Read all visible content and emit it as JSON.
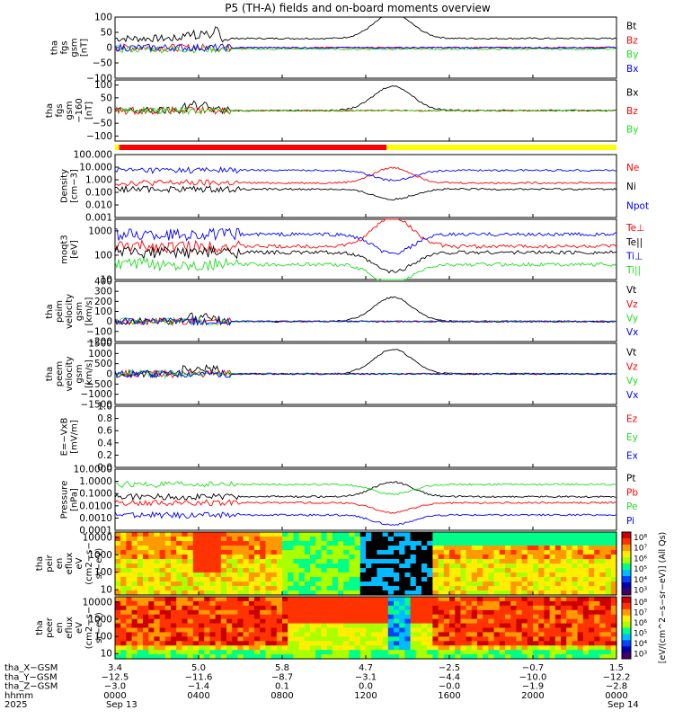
{
  "title": "P5 (TH-A) fields and on-board moments overview",
  "colors": {
    "black": "#000000",
    "red": "#ff0000",
    "green": "#22dd22",
    "blue": "#0000ff",
    "yellow": "#ffff00",
    "grid_bg": "#ffffff"
  },
  "chart_data": [
    {
      "type": "line",
      "id": "fgs",
      "ylabel": [
        "tha",
        "fgs",
        "gsm",
        "[nT]"
      ],
      "ylim": [
        -100,
        100
      ],
      "ticks": [
        "100",
        "50",
        "0",
        "−50",
        "−100"
      ],
      "tick_values": [
        100,
        50,
        0,
        -50,
        -100
      ],
      "legend": [
        {
          "label": "Bt",
          "color": "#000000"
        },
        {
          "label": "Bz",
          "color": "#ff0000"
        },
        {
          "label": "By",
          "color": "#22dd22"
        },
        {
          "label": "Bx",
          "color": "#0000ff"
        }
      ]
    },
    {
      "type": "line",
      "id": "fgs-sm",
      "ylabel": [
        "tha",
        "fgs",
        "gsm",
        "−160",
        "[nT]"
      ],
      "ylim": [
        -120,
        120
      ],
      "ticks": [
        "100",
        "50",
        "0",
        "−50",
        "−100"
      ],
      "tick_values": [
        100,
        50,
        0,
        -50,
        -100
      ],
      "legend": [
        {
          "label": "Bx",
          "color": "#000000"
        },
        {
          "label": "Bz",
          "color": "#ff0000"
        },
        {
          "label": "By",
          "color": "#22dd22"
        }
      ]
    },
    {
      "type": "bar",
      "id": "region-bar",
      "segments": [
        {
          "start_hour": 0.0,
          "end_hour": 0.2,
          "color": "#ffff00"
        },
        {
          "start_hour": 0.2,
          "end_hour": 13.0,
          "color": "#ff0000"
        },
        {
          "start_hour": 13.0,
          "end_hour": 24.0,
          "color": "#ffff00"
        }
      ]
    },
    {
      "type": "line",
      "id": "density",
      "ylabel": [
        "Density",
        "[cm−3]"
      ],
      "ylim": [
        0.001,
        100
      ],
      "scale": "log",
      "ticks": [
        "100.000",
        "10.000",
        "1.000",
        "0.100",
        "0.010",
        "0.001"
      ],
      "tick_values": [
        100,
        10,
        1,
        0.1,
        0.01,
        0.001
      ],
      "legend": [
        {
          "label": "Ne",
          "color": "#ff0000"
        },
        {
          "label": "Ni",
          "color": "#000000"
        },
        {
          "label": "Npot",
          "color": "#0000ff"
        }
      ]
    },
    {
      "type": "line",
      "id": "temp",
      "ylabel": [
        "moqt3",
        "[eV]"
      ],
      "ylim": [
        10,
        3000
      ],
      "scale": "log",
      "ticks": [
        "1000",
        "100",
        "10"
      ],
      "tick_values": [
        1000,
        100,
        10
      ],
      "legend": [
        {
          "label": "Te⊥",
          "color": "#ff0000"
        },
        {
          "label": "Te||",
          "color": "#000000"
        },
        {
          "label": "Ti⊥",
          "color": "#0000ff"
        },
        {
          "label": "Ti||",
          "color": "#22dd22"
        }
      ]
    },
    {
      "type": "line",
      "id": "peim-vel",
      "ylabel": [
        "tha",
        "peim",
        "velocity",
        "gsm",
        "[km/s]"
      ],
      "ylim": [
        -200,
        400
      ],
      "ticks": [
        "400",
        "300",
        "200",
        "100",
        "0",
        "−100",
        "−200"
      ],
      "tick_values": [
        400,
        300,
        200,
        100,
        0,
        -100,
        -200
      ],
      "legend": [
        {
          "label": "Vt",
          "color": "#000000"
        },
        {
          "label": "Vz",
          "color": "#ff0000"
        },
        {
          "label": "Vy",
          "color": "#22dd22"
        },
        {
          "label": "Vx",
          "color": "#0000ff"
        }
      ]
    },
    {
      "type": "line",
      "id": "peem-vel",
      "ylabel": [
        "tha",
        "peem",
        "velocity",
        "gsm",
        "[km/s]"
      ],
      "ylim": [
        -1500,
        1500
      ],
      "ticks": [
        "1500",
        "1000",
        "500",
        "0",
        "−500",
        "−1000",
        "−1500"
      ],
      "tick_values": [
        1500,
        1000,
        500,
        0,
        -500,
        -1000,
        -1500
      ],
      "legend": [
        {
          "label": "Vt",
          "color": "#000000"
        },
        {
          "label": "Vz",
          "color": "#ff0000"
        },
        {
          "label": "Vy",
          "color": "#22dd22"
        },
        {
          "label": "Vx",
          "color": "#0000ff"
        }
      ]
    },
    {
      "type": "line",
      "id": "efield",
      "ylabel": [
        "E=−VxB",
        "[mV/m]"
      ],
      "ylim": [
        0,
        1
      ],
      "ticks": [
        "1.0",
        "0.8",
        "0.6",
        "0.4",
        "0.2",
        "0.0"
      ],
      "tick_values": [
        1,
        0.8,
        0.6,
        0.4,
        0.2,
        0
      ],
      "legend": [
        {
          "label": "Ez",
          "color": "#ff0000"
        },
        {
          "label": "Ey",
          "color": "#22dd22"
        },
        {
          "label": "Ex",
          "color": "#0000ff"
        }
      ]
    },
    {
      "type": "line",
      "id": "pressure",
      "ylabel": [
        "Pressure",
        "[nPa]"
      ],
      "ylim": [
        0.0001,
        10
      ],
      "scale": "log",
      "ticks": [
        "10.0000",
        "1.0000",
        "0.1000",
        "0.0100",
        "0.0010",
        "0.0001"
      ],
      "tick_values": [
        10,
        1,
        0.1,
        0.01,
        0.001,
        0.0001
      ],
      "legend": [
        {
          "label": "Pt",
          "color": "#000000"
        },
        {
          "label": "Pb",
          "color": "#ff0000"
        },
        {
          "label": "Pe",
          "color": "#22dd22"
        },
        {
          "label": "Pi",
          "color": "#0000ff"
        }
      ]
    },
    {
      "type": "heatmap",
      "id": "peir",
      "ylabel": [
        "tha",
        "peir",
        "en",
        "eflux",
        "eV",
        "(cm2−s−",
        "sr−eV)"
      ],
      "ylim": [
        5,
        20000
      ],
      "scale": "log",
      "ticks": [
        "10000",
        "1000",
        "100",
        "10"
      ],
      "tick_values": [
        10000,
        1000,
        100,
        10
      ]
    },
    {
      "type": "heatmap",
      "id": "peer",
      "ylabel": [
        "tha",
        "peer",
        "en",
        "eflux",
        "eV",
        "(cm2−s−",
        "sr−eV)"
      ],
      "ylim": [
        5,
        20000
      ],
      "scale": "log",
      "ticks": [
        "10000",
        "1000",
        "100",
        "10"
      ],
      "tick_values": [
        10000,
        1000,
        100,
        10
      ]
    }
  ],
  "colorbar": {
    "label": "[eV/(cm^2−s−sr−eV)] (All Qs)",
    "ticks": [
      "10⁸",
      "10⁷",
      "10⁶",
      "10⁵",
      "10⁴",
      "10³"
    ],
    "ticks2": [
      "10⁸",
      "10⁷",
      "10⁶",
      "10⁵",
      "10⁴",
      "10³"
    ]
  },
  "xaxis": {
    "row_labels": [
      "tha_X−GSM",
      "tha_Y−GSM",
      "tha_Z−GSM",
      "hhmm",
      "2025"
    ],
    "hours": [
      0,
      4,
      8,
      12,
      16,
      20,
      24
    ],
    "columns": [
      [
        "3.4",
        "−12.5",
        "−3.0",
        "0000",
        "Sep 13"
      ],
      [
        "5.0",
        "−11.6",
        "−1.4",
        "0400",
        ""
      ],
      [
        "5.8",
        "−8.7",
        "0.1",
        "0800",
        ""
      ],
      [
        "4.7",
        "−3.1",
        "0.0",
        "1200",
        ""
      ],
      [
        "−2.5",
        "−4.4",
        "−0.0",
        "1600",
        ""
      ],
      [
        "−0.7",
        "−10.0",
        "−1.9",
        "2000",
        ""
      ],
      [
        "1.5",
        "−12.2",
        "−2.8",
        "0000",
        "Sep 14"
      ]
    ]
  }
}
